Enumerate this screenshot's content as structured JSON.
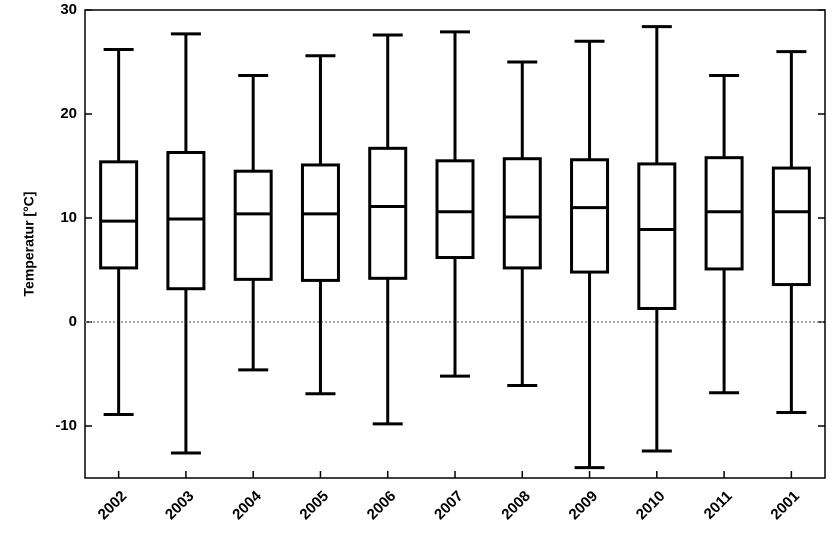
{
  "chart_data": {
    "type": "box",
    "ylabel": "Temperatur [°C]",
    "categories": [
      "2002",
      "2003",
      "2004",
      "2005",
      "2006",
      "2007",
      "2008",
      "2009",
      "2010",
      "2011",
      "2001"
    ],
    "min": [
      -8.9,
      -12.6,
      -4.6,
      -6.9,
      -9.8,
      -5.2,
      -6.1,
      -14.0,
      -12.4,
      -6.8,
      -8.7
    ],
    "q1": [
      5.2,
      3.2,
      4.1,
      4.0,
      4.2,
      6.2,
      5.2,
      4.8,
      1.3,
      5.1,
      3.6
    ],
    "median": [
      9.7,
      9.9,
      10.4,
      10.4,
      11.1,
      10.6,
      10.1,
      11.0,
      8.9,
      10.6,
      10.6
    ],
    "q3": [
      15.4,
      16.3,
      14.5,
      15.1,
      16.7,
      15.5,
      15.7,
      15.6,
      15.2,
      15.8,
      14.8
    ],
    "max": [
      26.2,
      27.7,
      23.7,
      25.6,
      27.6,
      27.9,
      25.0,
      27.0,
      28.4,
      23.7,
      26.0
    ],
    "color": "#000000",
    "ylim": [
      -15,
      30
    ],
    "yticks": [
      -10,
      0,
      10,
      20,
      30
    ],
    "hline": 0
  }
}
